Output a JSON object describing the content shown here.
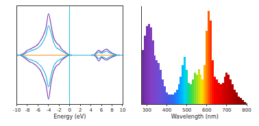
{
  "chart_data": [
    {
      "type": "line",
      "x_label": "Energy (eV)",
      "x": [
        -10,
        -9.5,
        -9,
        -8.5,
        -8,
        -7.5,
        -7,
        -6.5,
        -6,
        -5.5,
        -5,
        -4.5,
        -4,
        -3.5,
        -3,
        -2.5,
        -2,
        -1.5,
        -1,
        -0.5,
        0,
        0.5,
        1,
        1.5,
        2,
        2.5,
        3,
        3.5,
        4,
        4.5,
        5,
        5.5,
        6,
        6.5,
        7,
        7.5,
        8,
        8.5,
        9,
        9.5,
        10
      ],
      "series": [
        {
          "color": "#7b3fb5",
          "values": [
            0,
            0,
            0.02,
            0.05,
            0.1,
            0.12,
            0.15,
            0.18,
            0.22,
            0.3,
            0.4,
            0.55,
            0.85,
            0.6,
            0.35,
            0.25,
            0.2,
            0.12,
            0.08,
            0.03,
            0,
            0,
            0,
            0,
            0,
            0,
            0,
            0,
            0,
            0,
            0.05,
            0.1,
            0.06,
            0.1,
            0.12,
            0.08,
            0.04,
            0.02,
            0,
            0,
            0
          ]
        },
        {
          "color": "#7b3fb5",
          "values": [
            0,
            0,
            -0.02,
            -0.06,
            -0.1,
            -0.14,
            -0.16,
            -0.2,
            -0.25,
            -0.32,
            -0.45,
            -0.6,
            -0.9,
            -0.55,
            -0.32,
            -0.22,
            -0.18,
            -0.1,
            -0.06,
            -0.02,
            0,
            0,
            0,
            0,
            0,
            0,
            0,
            0,
            0,
            0,
            -0.04,
            -0.12,
            -0.05,
            -0.08,
            -0.1,
            -0.07,
            -0.04,
            -0.02,
            0,
            0,
            0
          ]
        },
        {
          "color": "#1fb6e0",
          "values": [
            0,
            0,
            0.01,
            0.03,
            0.06,
            0.08,
            0.1,
            0.12,
            0.15,
            0.2,
            0.28,
            0.4,
            0.6,
            0.45,
            0.25,
            0.15,
            0.12,
            0.08,
            0.05,
            0.02,
            0,
            0,
            0,
            0,
            0,
            0,
            0,
            0,
            0,
            0,
            0.03,
            0.06,
            0.04,
            0.06,
            0.08,
            0.05,
            0.03,
            0.01,
            0,
            0,
            0
          ]
        },
        {
          "color": "#1fb6e0",
          "values": [
            0,
            0,
            -0.01,
            -0.03,
            -0.07,
            -0.09,
            -0.11,
            -0.13,
            -0.17,
            -0.22,
            -0.3,
            -0.42,
            -0.65,
            -0.4,
            -0.22,
            -0.14,
            -0.1,
            -0.07,
            -0.04,
            -0.01,
            0,
            0,
            0,
            0,
            0,
            0,
            0,
            0,
            0,
            0,
            -0.02,
            -0.07,
            -0.03,
            -0.05,
            -0.07,
            -0.04,
            -0.02,
            -0.01,
            0,
            0,
            0
          ]
        }
      ],
      "xlim": [
        -10,
        10
      ],
      "xticks": [
        -10,
        -8,
        -6,
        -4,
        -2,
        0,
        2,
        4,
        6,
        8,
        10
      ],
      "ylim": [
        -1,
        1
      ],
      "tick_labels": "x",
      "grid": false
    },
    {
      "type": "bar",
      "x_label": "Wavelength (nm)",
      "x": [
        280,
        290,
        300,
        310,
        320,
        330,
        340,
        350,
        360,
        370,
        380,
        390,
        400,
        410,
        420,
        430,
        440,
        450,
        460,
        470,
        480,
        490,
        500,
        510,
        520,
        530,
        540,
        550,
        560,
        570,
        580,
        590,
        600,
        610,
        620,
        630,
        640,
        650,
        660,
        670,
        680,
        690,
        700,
        710,
        720,
        730,
        740,
        750,
        760,
        770,
        780,
        790,
        800
      ],
      "values": [
        0.55,
        0.7,
        0.8,
        0.82,
        0.78,
        0.65,
        0.5,
        0.45,
        0.42,
        0.35,
        0.25,
        0.18,
        0.12,
        0.1,
        0.1,
        0.1,
        0.12,
        0.15,
        0.2,
        0.28,
        0.4,
        0.48,
        0.35,
        0.22,
        0.2,
        0.25,
        0.32,
        0.3,
        0.36,
        0.3,
        0.25,
        0.4,
        0.75,
        0.95,
        0.85,
        0.45,
        0.28,
        0.25,
        0.22,
        0.2,
        0.22,
        0.28,
        0.32,
        0.3,
        0.25,
        0.2,
        0.15,
        0.12,
        0.08,
        0.06,
        0.04,
        0.02,
        0.01
      ],
      "colors": [
        "#6a2c9a",
        "#7330a8",
        "#7a35b5",
        "#7f38bd",
        "#8040c0",
        "#8040c8",
        "#7a44cc",
        "#7448d0",
        "#6e4cd4",
        "#684fd8",
        "#6050dc",
        "#5852e0",
        "#4f55e4",
        "#4458e8",
        "#3860ee",
        "#2c6af2",
        "#2078f6",
        "#1488fa",
        "#0898fc",
        "#00a8ff",
        "#00b8ff",
        "#00d0f0",
        "#00d8c0",
        "#10d890",
        "#30d860",
        "#50dc40",
        "#78e030",
        "#a0e020",
        "#c8e410",
        "#e8e800",
        "#ffd800",
        "#ffb000",
        "#ff8800",
        "#ff5a00",
        "#ff3000",
        "#ff1000",
        "#f80000",
        "#f00000",
        "#e80000",
        "#e00000",
        "#d80000",
        "#d00000",
        "#c80000",
        "#c00000",
        "#b80000",
        "#b00000",
        "#a80000",
        "#a00000",
        "#980000",
        "#900000",
        "#880000",
        "#800000",
        "#780000"
      ],
      "xlim": [
        275,
        805
      ],
      "xticks": [
        300,
        400,
        500,
        600,
        700,
        800
      ],
      "ylim": [
        0,
        1
      ],
      "tick_labels": "x",
      "grid": false
    }
  ]
}
